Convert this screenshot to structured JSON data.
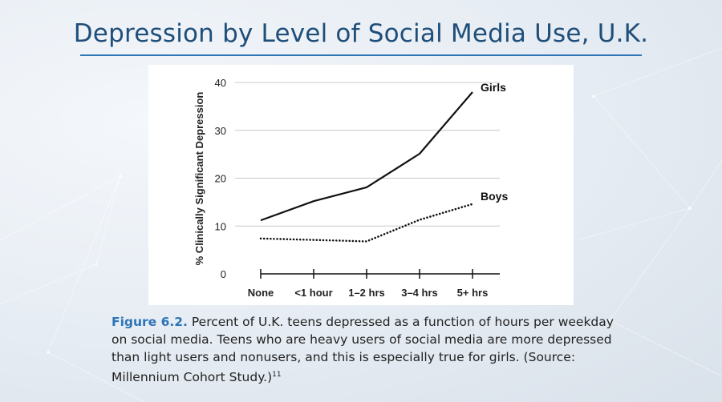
{
  "slide": {
    "title": "Depression by Level of Social Media Use, U.K."
  },
  "caption": {
    "label": "Figure 6.2.",
    "text": " Percent of U.K. teens depressed as a function of hours per weekday on social media. Teens who are heavy users of social media are more depressed than light users and nonusers, and this is especially true for girls. (Source: Millennium Cohort Study.)",
    "footnote": "11"
  },
  "chart_data": {
    "type": "line",
    "title": "",
    "xlabel": "",
    "ylabel": "% Clinically Significant Depression",
    "categories": [
      "None",
      "<1 hour",
      "1–2 hrs",
      "3–4 hrs",
      "5+ hrs"
    ],
    "yticks": [
      "0",
      "10",
      "20",
      "30",
      "40"
    ],
    "ylim": [
      0,
      40
    ],
    "grid": true,
    "series": [
      {
        "name": "Girls",
        "values": [
          11.2,
          15.2,
          18.1,
          25.1,
          38.0
        ],
        "style": "solid",
        "color": "#111111"
      },
      {
        "name": "Boys",
        "values": [
          7.4,
          7.1,
          6.8,
          11.3,
          14.6
        ],
        "style": "dotted",
        "color": "#111111"
      }
    ]
  }
}
